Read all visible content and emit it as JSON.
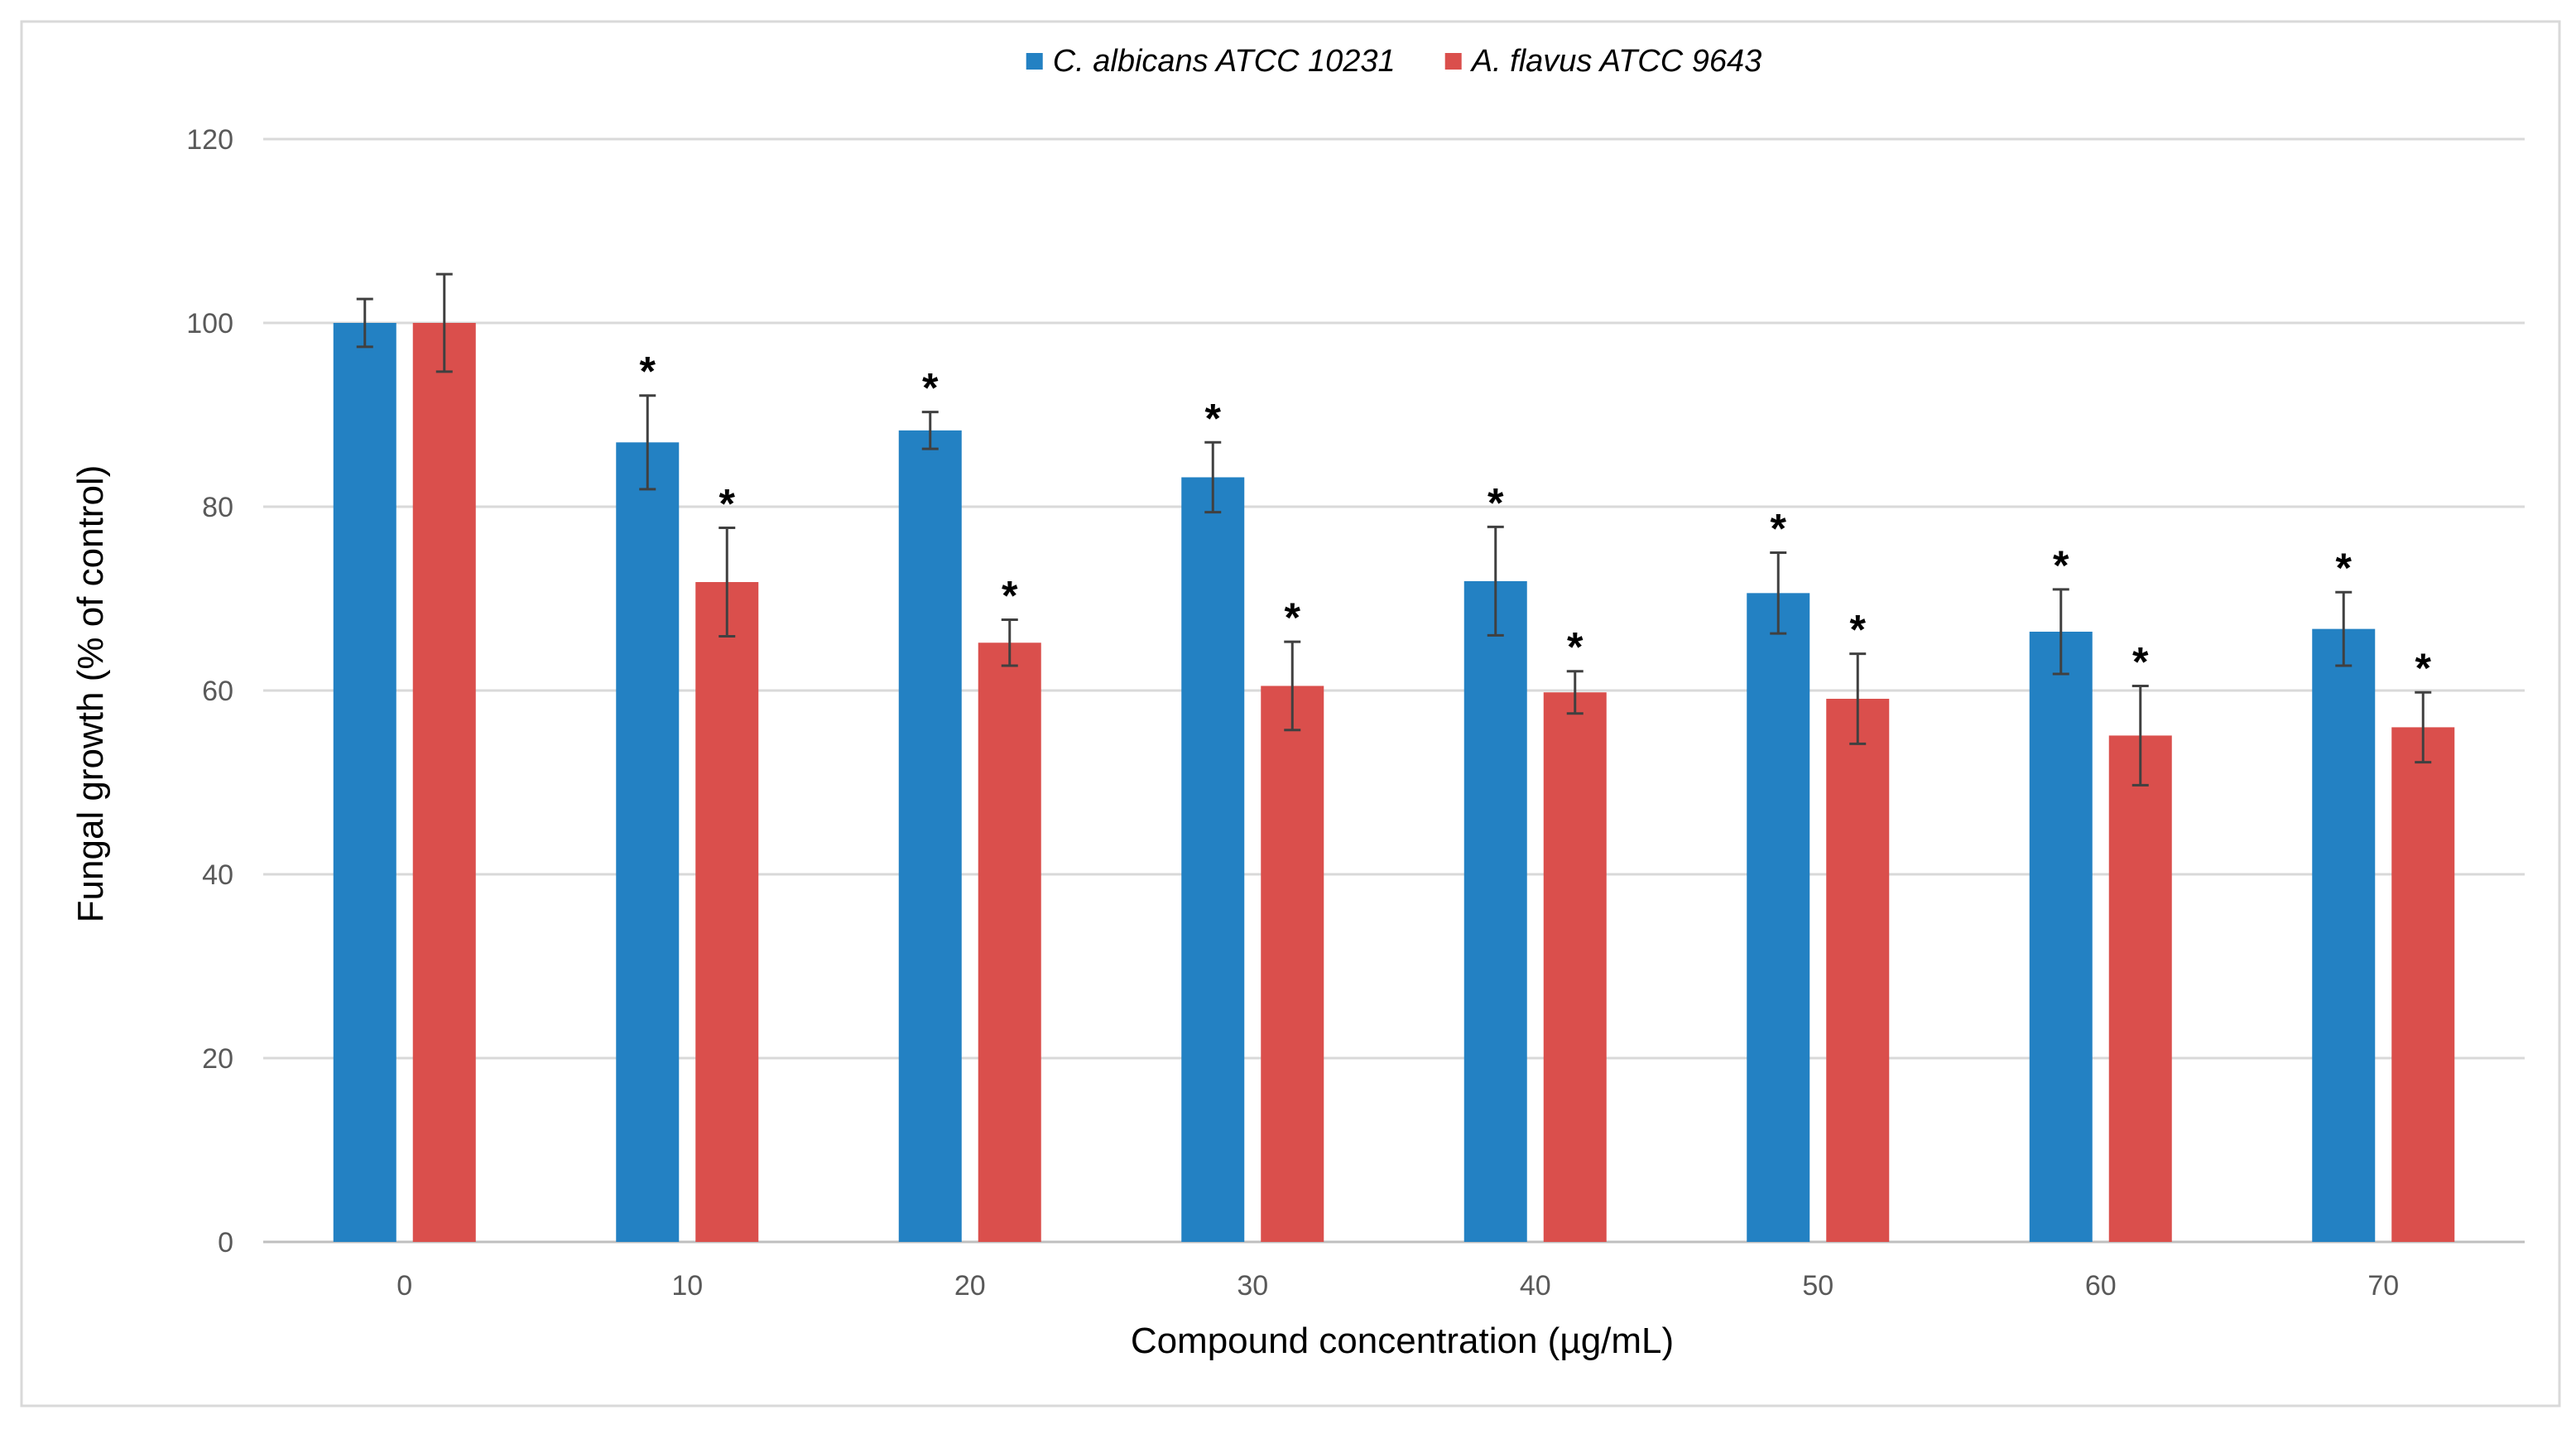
{
  "chart_data": {
    "type": "bar",
    "title": "",
    "xlabel": "Compound concentration (µg/mL)",
    "ylabel": "Fungal growth (%  of control)",
    "categories": [
      "0",
      "10",
      "20",
      "30",
      "40",
      "50",
      "60",
      "70"
    ],
    "ylim": [
      0,
      120
    ],
    "yticks": [
      0,
      20,
      40,
      60,
      80,
      100,
      120
    ],
    "grid": true,
    "legend_position": "top",
    "significance_marker": "*",
    "series": [
      {
        "name": "C. albicans ATCC 10231",
        "color": "#2381C3",
        "values": [
          100,
          87,
          88.3,
          83.2,
          71.9,
          70.6,
          66.4,
          66.7
        ],
        "errors": [
          2.6,
          5.1,
          2.0,
          3.8,
          5.9,
          4.4,
          4.6,
          4.0
        ],
        "significant": [
          false,
          true,
          true,
          true,
          true,
          true,
          true,
          true
        ]
      },
      {
        "name": "A. flavus ATCC 9643",
        "color": "#DA4F4C",
        "values": [
          100,
          71.8,
          65.2,
          60.5,
          59.8,
          59.1,
          55.1,
          56
        ],
        "errors": [
          5.3,
          5.9,
          2.5,
          4.8,
          2.3,
          4.9,
          5.4,
          3.8
        ],
        "significant": [
          false,
          true,
          true,
          true,
          true,
          true,
          true,
          true
        ]
      }
    ]
  }
}
